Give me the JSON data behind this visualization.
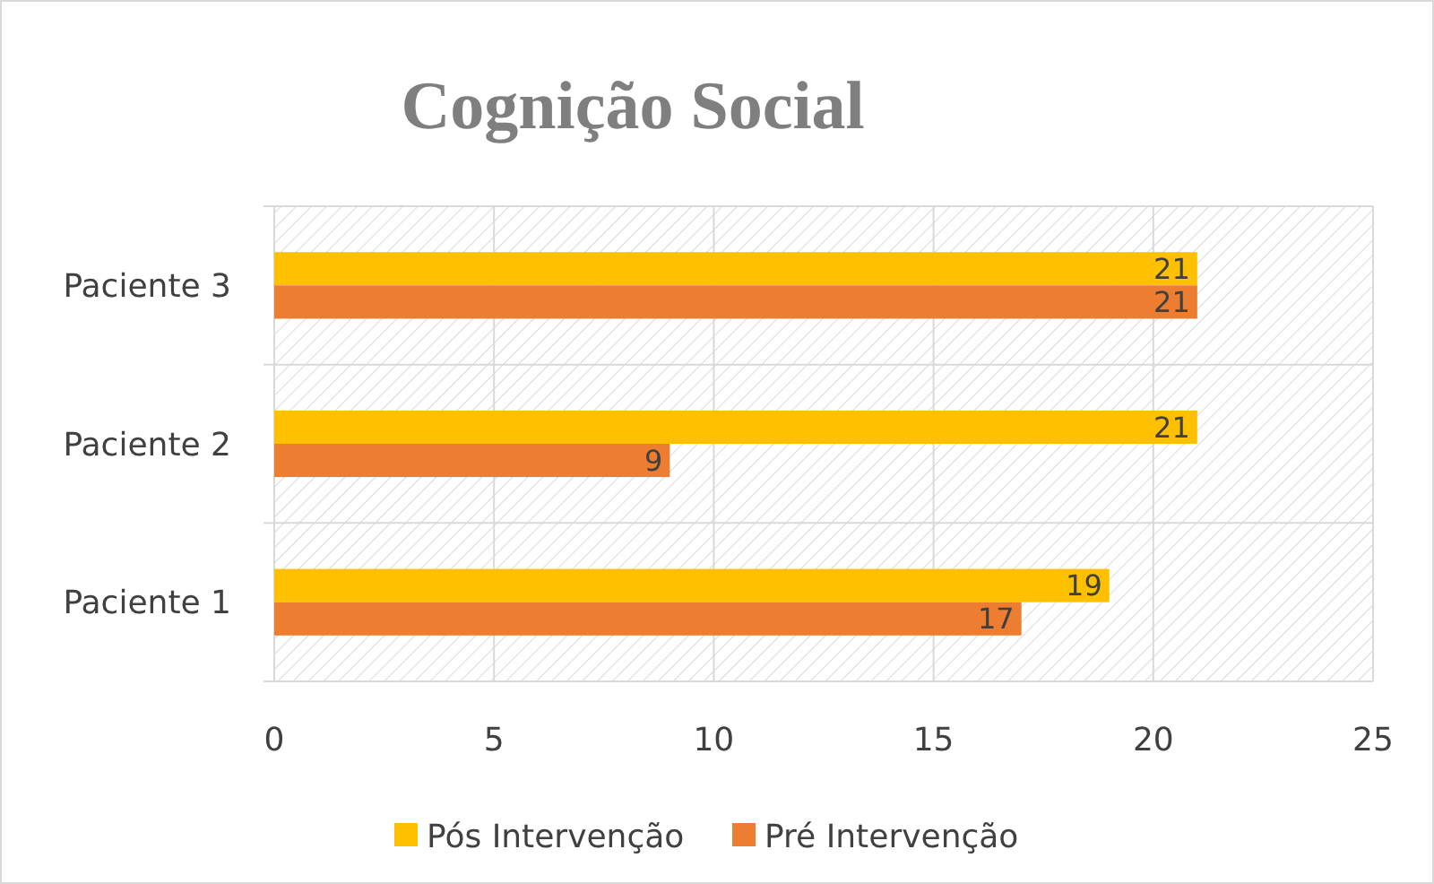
{
  "chart_data": {
    "type": "bar",
    "orientation": "horizontal",
    "title": "Cognição Social",
    "categories": [
      "Paciente 3",
      "Paciente 2",
      "Paciente 1"
    ],
    "series": [
      {
        "name": "Pós Intervenção",
        "color": "#ffc000",
        "values": [
          21,
          21,
          19
        ]
      },
      {
        "name": "Pré Intervenção",
        "color": "#ed7d31",
        "values": [
          21,
          9,
          17
        ]
      }
    ],
    "xlim": [
      0,
      25
    ],
    "xticks": [
      0,
      5,
      10,
      15,
      20,
      25
    ],
    "grid": "x",
    "legend": "bottom",
    "data_labels": true
  }
}
